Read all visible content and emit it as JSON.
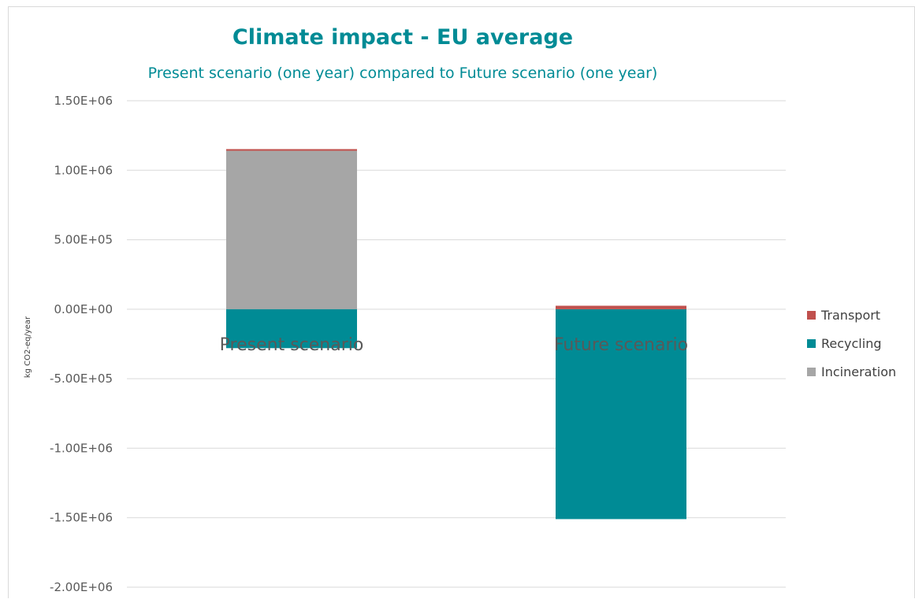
{
  "chart_data": {
    "type": "bar",
    "stacked": true,
    "title": "Climate impact - EU average",
    "subtitle": "Present scenario (one year)  compared to Future scenario (one year)",
    "xlabel": "",
    "ylabel": "kg CO2-eq/year",
    "categories": [
      "Present scenario",
      "Future scenario"
    ],
    "ylim": [
      -2000000,
      1500000
    ],
    "yticks": [
      1500000,
      1000000,
      500000,
      0,
      -500000,
      -1000000,
      -1500000,
      -2000000
    ],
    "ytick_labels": [
      "1.50E+06",
      "1.00E+06",
      "5.00E+05",
      "0.00E+00",
      "-5.00E+05",
      "-1.00E+06",
      "-1.50E+06",
      "-2.00E+06"
    ],
    "grid": true,
    "legend_position": "right",
    "series": [
      {
        "name": "Transport",
        "color": "#c0504d",
        "values": [
          12000,
          25000
        ]
      },
      {
        "name": "Recycling",
        "color": "#008b95",
        "values": [
          -280000,
          -1510000
        ]
      },
      {
        "name": "Incineration",
        "color": "#a6a6a6",
        "values": [
          1140000,
          0
        ]
      }
    ],
    "colors": {
      "title": "#008b95",
      "subtitle": "#008b95",
      "grid": "#d9d9d9"
    }
  }
}
